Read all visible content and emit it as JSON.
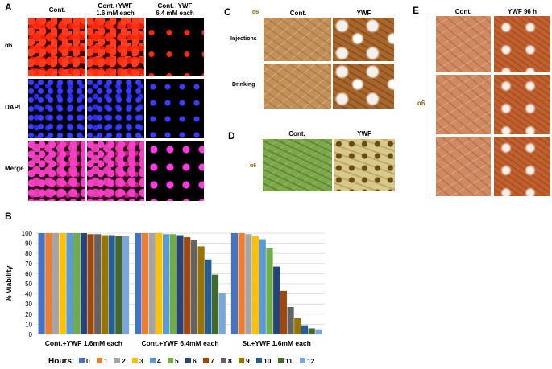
{
  "panels": {
    "A": {
      "label": "A",
      "columns": [
        "Cont.",
        "Cont.+YWF\n1.6 mM each",
        "Cont.+YWF\n6.4 mM each"
      ],
      "rows": [
        "α6",
        "DAPI",
        "Merge"
      ]
    },
    "B": {
      "label": "B"
    },
    "C": {
      "label": "C",
      "marker": "α6",
      "columns": [
        "Cont.",
        "YWF"
      ],
      "rows": [
        "Injections",
        "Drinking"
      ]
    },
    "D": {
      "label": "D",
      "marker": "α6",
      "columns": [
        "Cont.",
        "YWF"
      ]
    },
    "E": {
      "label": "E",
      "marker": "α6",
      "columns": [
        "Cont.",
        "YWF 96 h"
      ]
    }
  },
  "chart_data": {
    "type": "bar",
    "ylabel": "% Viability",
    "ylim": [
      0,
      100
    ],
    "yticks": [
      0,
      10,
      20,
      30,
      40,
      50,
      60,
      70,
      80,
      90,
      100
    ],
    "grid": true,
    "categories": [
      "Cont.+YWF 1.6mM each",
      "Cont.+YWF 6.4mM each",
      "St.+YWF 1.6mM each"
    ],
    "legend_title": "Hours:",
    "legend_placement": "bottom",
    "series": [
      {
        "name": "0",
        "color": "#4472c4",
        "values": [
          100,
          100,
          100
        ]
      },
      {
        "name": "1",
        "color": "#ed7d31",
        "values": [
          100,
          100,
          100
        ]
      },
      {
        "name": "2",
        "color": "#a5a5a5",
        "values": [
          100,
          100,
          99
        ]
      },
      {
        "name": "3",
        "color": "#ffc000",
        "values": [
          100,
          100,
          97
        ]
      },
      {
        "name": "4",
        "color": "#5b9bd5",
        "values": [
          100,
          99,
          94
        ]
      },
      {
        "name": "5",
        "color": "#70ad47",
        "values": [
          100,
          99,
          85
        ]
      },
      {
        "name": "6",
        "color": "#264478",
        "values": [
          100,
          98,
          67
        ]
      },
      {
        "name": "7",
        "color": "#9e480e",
        "values": [
          99,
          96,
          43
        ]
      },
      {
        "name": "8",
        "color": "#636363",
        "values": [
          99,
          93,
          27
        ]
      },
      {
        "name": "9",
        "color": "#997300",
        "values": [
          98,
          87,
          16
        ]
      },
      {
        "name": "10",
        "color": "#255e91",
        "values": [
          98,
          74,
          9
        ]
      },
      {
        "name": "11",
        "color": "#43682b",
        "values": [
          97,
          59,
          6
        ]
      },
      {
        "name": "12",
        "color": "#7ca5d8",
        "values": [
          97,
          41,
          5
        ]
      }
    ]
  }
}
